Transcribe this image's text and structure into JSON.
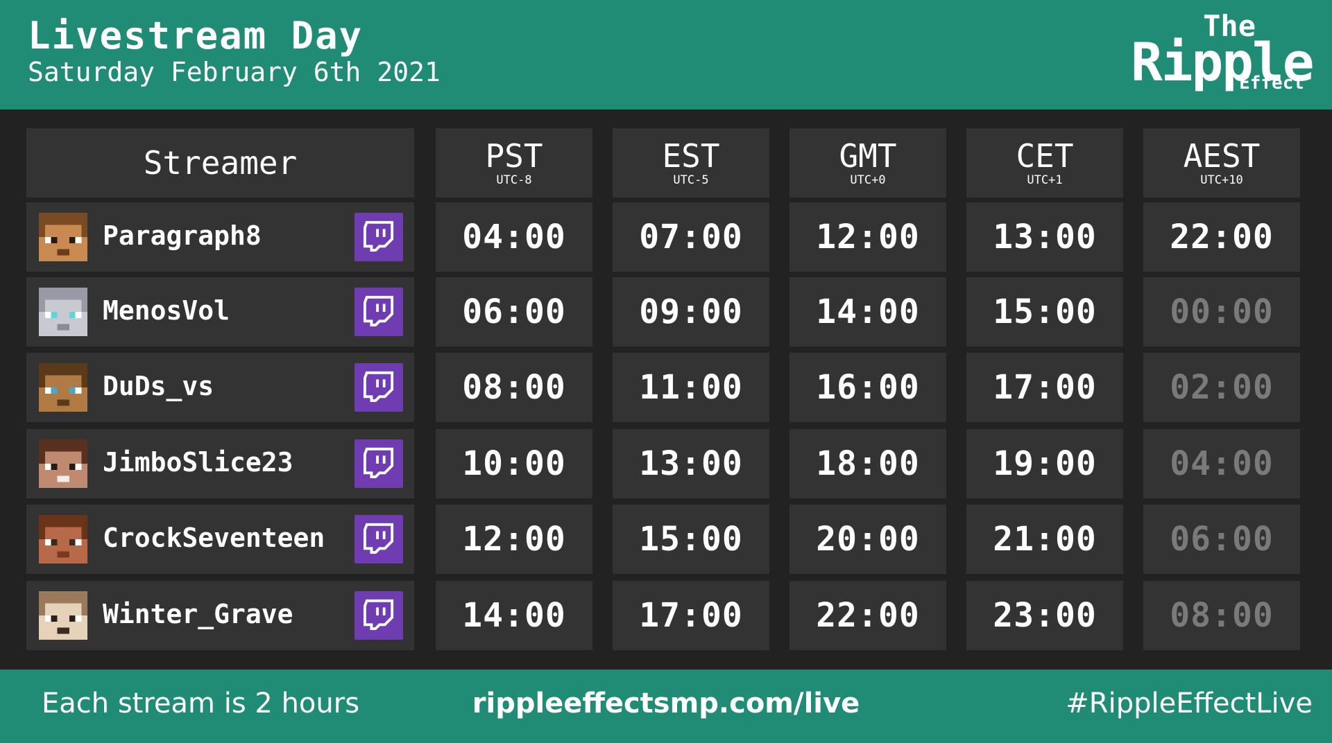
{
  "header": {
    "title": "Livestream Day",
    "subtitle": "Saturday February 6th 2021",
    "logo": {
      "line1": "The",
      "line2": "Ripple",
      "line3": "Effect"
    }
  },
  "table": {
    "streamer_header": "Streamer",
    "timezones": [
      {
        "name": "PST",
        "offset": "UTC-8"
      },
      {
        "name": "EST",
        "offset": "UTC-5"
      },
      {
        "name": "GMT",
        "offset": "UTC+0"
      },
      {
        "name": "CET",
        "offset": "UTC+1"
      },
      {
        "name": "AEST",
        "offset": "UTC+10"
      }
    ],
    "rows": [
      {
        "streamer": "Paragraph8",
        "avatar": "skin-paragraph8",
        "times": [
          "04:00",
          "07:00",
          "12:00",
          "13:00",
          "22:00"
        ],
        "dimmed": [
          false,
          false,
          false,
          false,
          false
        ]
      },
      {
        "streamer": "MenosVol",
        "avatar": "skin-menosvol",
        "times": [
          "06:00",
          "09:00",
          "14:00",
          "15:00",
          "00:00"
        ],
        "dimmed": [
          false,
          false,
          false,
          false,
          true
        ]
      },
      {
        "streamer": "DuDs_vs",
        "avatar": "skin-duds",
        "times": [
          "08:00",
          "11:00",
          "16:00",
          "17:00",
          "02:00"
        ],
        "dimmed": [
          false,
          false,
          false,
          false,
          true
        ]
      },
      {
        "streamer": "JimboSlice23",
        "avatar": "skin-jimbo",
        "times": [
          "10:00",
          "13:00",
          "18:00",
          "19:00",
          "04:00"
        ],
        "dimmed": [
          false,
          false,
          false,
          false,
          true
        ]
      },
      {
        "streamer": "CrockSeventeen",
        "avatar": "skin-crock",
        "times": [
          "12:00",
          "15:00",
          "20:00",
          "21:00",
          "06:00"
        ],
        "dimmed": [
          false,
          false,
          false,
          false,
          true
        ]
      },
      {
        "streamer": "Winter_Grave",
        "avatar": "skin-winter",
        "times": [
          "14:00",
          "17:00",
          "22:00",
          "23:00",
          "08:00"
        ],
        "dimmed": [
          false,
          false,
          false,
          false,
          true
        ]
      }
    ],
    "icon": "twitch-icon"
  },
  "footer": {
    "note": "Each stream is 2 hours",
    "url": "rippleeffectsmp.com/live",
    "hashtag": "#RippleEffectLive"
  },
  "colors": {
    "accent": "#208c76",
    "background": "#222222",
    "cell": "#333333",
    "twitch": "#6f3cb2",
    "dimmed_text": "#7a7a7a"
  }
}
